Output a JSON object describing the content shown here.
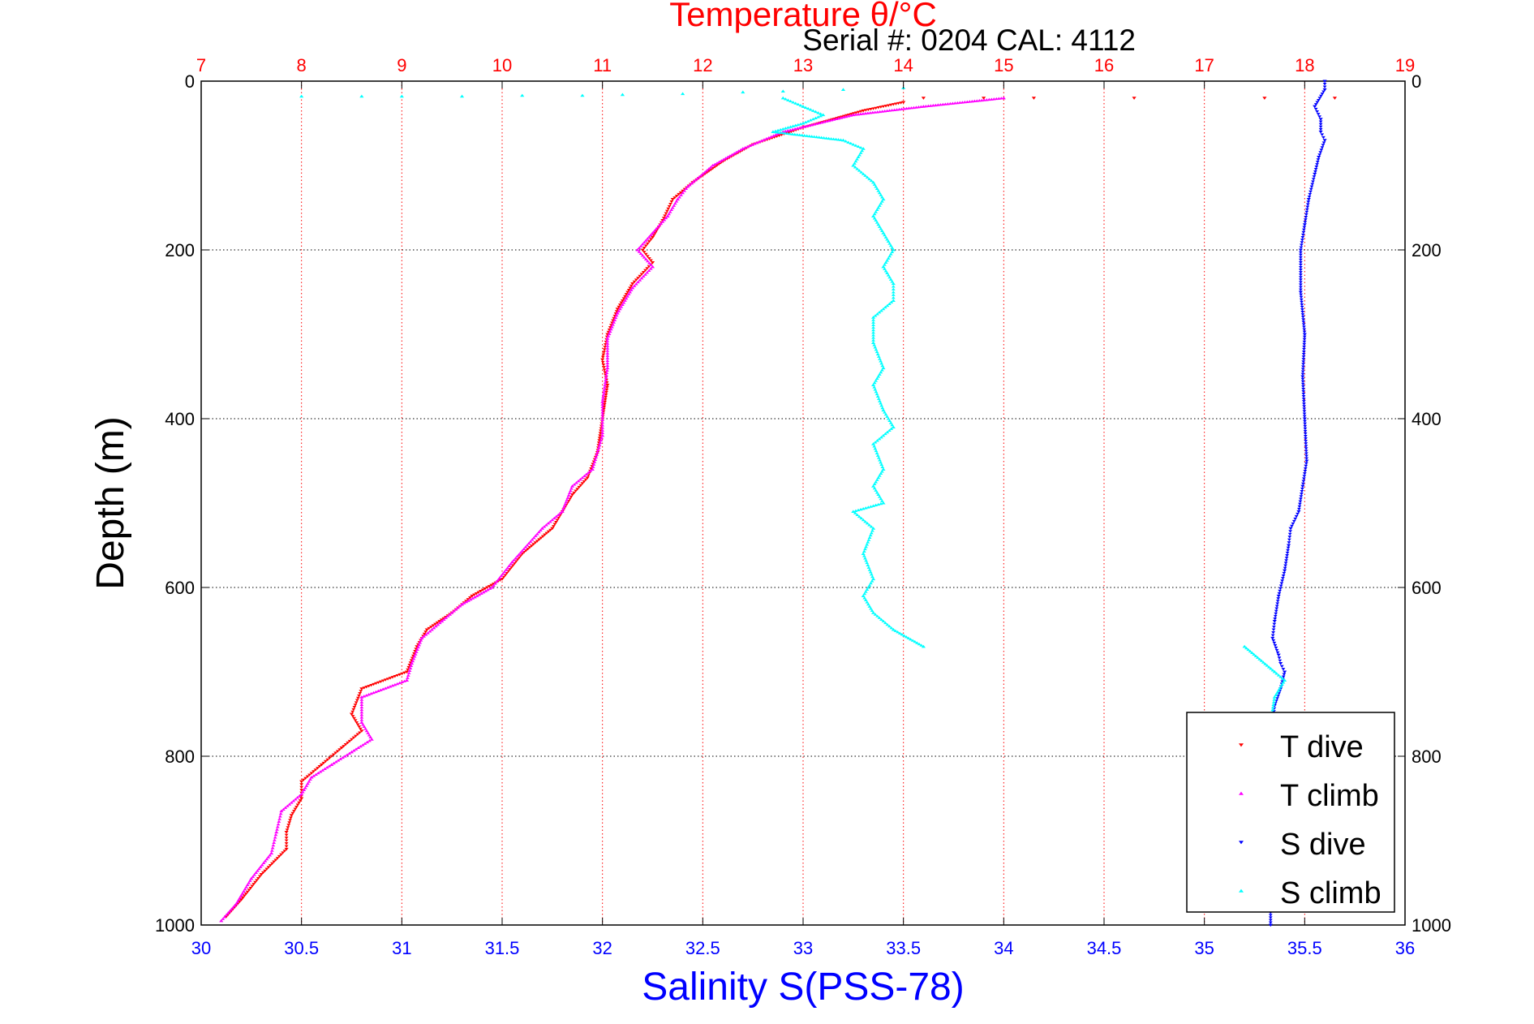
{
  "chart_data": {
    "type": "scatter",
    "title": "Temperature θ/°C",
    "subtitle": "Serial #: 0204  CAL: 4112",
    "xlabel": "Salinity S(PSS-78)",
    "x2label": "Temperature θ/°C",
    "ylabel": "Depth (m)",
    "xlim": [
      30,
      36
    ],
    "x2lim": [
      7,
      19
    ],
    "ylim": [
      1000,
      0
    ],
    "y_reversed": true,
    "grid": true,
    "legend_position": "bottom-right",
    "x_ticks": [
      "30",
      "30.5",
      "31",
      "31.5",
      "32",
      "32.5",
      "33",
      "33.5",
      "34",
      "34.5",
      "35",
      "35.5",
      "36"
    ],
    "x2_ticks": [
      "7",
      "8",
      "9",
      "10",
      "11",
      "12",
      "13",
      "14",
      "15",
      "16",
      "17",
      "18",
      "19"
    ],
    "y_ticks": [
      "0",
      "200",
      "400",
      "600",
      "800",
      "1000"
    ],
    "colors": {
      "temperature_axis": "#ff0000",
      "salinity_axis": "#0000ff",
      "ylabel": "#000000",
      "grid_temperature": "#ff0000",
      "grid_depth": "#000000"
    },
    "series": [
      {
        "name": "T dive",
        "axis": "temperature",
        "color": "#ff0000",
        "marker": "triangle-down",
        "points": [
          [
            14.2,
            20
          ],
          [
            14.8,
            20
          ],
          [
            15.3,
            20
          ],
          [
            16.3,
            20
          ],
          [
            17.6,
            20
          ],
          [
            18.3,
            20
          ],
          [
            14.0,
            25
          ],
          [
            13.6,
            35
          ],
          [
            13.0,
            55
          ],
          [
            12.5,
            75
          ],
          [
            12.2,
            95
          ],
          [
            11.9,
            120
          ],
          [
            11.7,
            140
          ],
          [
            11.6,
            165
          ],
          [
            11.5,
            185
          ],
          [
            11.4,
            200
          ],
          [
            11.5,
            215
          ],
          [
            11.3,
            240
          ],
          [
            11.15,
            270
          ],
          [
            11.05,
            300
          ],
          [
            11.0,
            330
          ],
          [
            11.05,
            360
          ],
          [
            11.0,
            400
          ],
          [
            10.95,
            440
          ],
          [
            10.85,
            470
          ],
          [
            10.7,
            490
          ],
          [
            10.5,
            530
          ],
          [
            10.2,
            560
          ],
          [
            10.0,
            590
          ],
          [
            9.7,
            610
          ],
          [
            9.5,
            630
          ],
          [
            9.25,
            650
          ],
          [
            9.15,
            670
          ],
          [
            9.05,
            700
          ],
          [
            8.6,
            720
          ],
          [
            8.5,
            750
          ],
          [
            8.6,
            770
          ],
          [
            8.4,
            790
          ],
          [
            8.2,
            810
          ],
          [
            8.0,
            830
          ],
          [
            8.0,
            850
          ],
          [
            7.9,
            870
          ],
          [
            7.85,
            890
          ],
          [
            7.85,
            910
          ],
          [
            7.6,
            940
          ],
          [
            7.4,
            970
          ],
          [
            7.25,
            990
          ]
        ]
      },
      {
        "name": "T climb",
        "axis": "temperature",
        "color": "#ff00ff",
        "marker": "triangle-up",
        "points": [
          [
            15.0,
            20
          ],
          [
            14.2,
            30
          ],
          [
            13.5,
            40
          ],
          [
            12.8,
            60
          ],
          [
            12.4,
            80
          ],
          [
            12.1,
            100
          ],
          [
            11.85,
            125
          ],
          [
            11.75,
            140
          ],
          [
            11.65,
            160
          ],
          [
            11.5,
            180
          ],
          [
            11.35,
            200
          ],
          [
            11.5,
            220
          ],
          [
            11.3,
            245
          ],
          [
            11.15,
            275
          ],
          [
            11.05,
            305
          ],
          [
            11.05,
            340
          ],
          [
            11.0,
            380
          ],
          [
            11.0,
            420
          ],
          [
            10.9,
            460
          ],
          [
            10.7,
            480
          ],
          [
            10.6,
            510
          ],
          [
            10.4,
            530
          ],
          [
            10.1,
            570
          ],
          [
            9.9,
            600
          ],
          [
            9.6,
            620
          ],
          [
            9.4,
            640
          ],
          [
            9.2,
            660
          ],
          [
            9.1,
            690
          ],
          [
            9.05,
            710
          ],
          [
            8.6,
            730
          ],
          [
            8.6,
            760
          ],
          [
            8.7,
            780
          ],
          [
            8.5,
            795
          ],
          [
            8.3,
            810
          ],
          [
            8.1,
            825
          ],
          [
            8.0,
            845
          ],
          [
            7.8,
            865
          ],
          [
            7.75,
            890
          ],
          [
            7.7,
            915
          ],
          [
            7.5,
            945
          ],
          [
            7.35,
            975
          ],
          [
            7.2,
            995
          ]
        ]
      },
      {
        "name": "S dive",
        "axis": "salinity",
        "color": "#0000ff",
        "marker": "triangle-down",
        "points": [
          [
            35.6,
            0
          ],
          [
            35.6,
            10
          ],
          [
            35.55,
            30
          ],
          [
            35.58,
            45
          ],
          [
            35.58,
            60
          ],
          [
            35.6,
            70
          ],
          [
            35.57,
            90
          ],
          [
            35.55,
            110
          ],
          [
            35.52,
            140
          ],
          [
            35.5,
            170
          ],
          [
            35.48,
            200
          ],
          [
            35.48,
            250
          ],
          [
            35.5,
            300
          ],
          [
            35.49,
            350
          ],
          [
            35.5,
            400
          ],
          [
            35.51,
            450
          ],
          [
            35.49,
            480
          ],
          [
            35.47,
            510
          ],
          [
            35.43,
            530
          ],
          [
            35.42,
            550
          ],
          [
            35.4,
            580
          ],
          [
            35.37,
            610
          ],
          [
            35.35,
            640
          ],
          [
            35.34,
            660
          ],
          [
            35.37,
            680
          ],
          [
            35.38,
            690
          ],
          [
            35.4,
            700
          ],
          [
            35.38,
            720
          ],
          [
            35.35,
            740
          ],
          [
            35.34,
            760
          ],
          [
            35.34,
            800
          ],
          [
            35.34,
            850
          ],
          [
            35.33,
            900
          ],
          [
            35.33,
            950
          ],
          [
            35.33,
            1000
          ]
        ]
      },
      {
        "name": "S climb",
        "axis": "salinity",
        "color": "#00ffff",
        "marker": "triangle-up",
        "points": [
          [
            30.5,
            18
          ],
          [
            30.8,
            18
          ],
          [
            31.0,
            18
          ],
          [
            31.3,
            18
          ],
          [
            31.6,
            17
          ],
          [
            31.9,
            17
          ],
          [
            32.1,
            16
          ],
          [
            32.4,
            15
          ],
          [
            32.7,
            13
          ],
          [
            32.9,
            12
          ],
          [
            33.2,
            10
          ],
          [
            33.5,
            8
          ],
          [
            32.9,
            20
          ],
          [
            33.0,
            30
          ],
          [
            33.1,
            40
          ],
          [
            33.0,
            50
          ],
          [
            32.85,
            60
          ],
          [
            33.2,
            70
          ],
          [
            33.3,
            80
          ],
          [
            33.25,
            100
          ],
          [
            33.35,
            120
          ],
          [
            33.4,
            140
          ],
          [
            33.35,
            160
          ],
          [
            33.4,
            180
          ],
          [
            33.45,
            200
          ],
          [
            33.4,
            220
          ],
          [
            33.45,
            240
          ],
          [
            33.45,
            260
          ],
          [
            33.35,
            280
          ],
          [
            33.35,
            310
          ],
          [
            33.4,
            340
          ],
          [
            33.35,
            360
          ],
          [
            33.4,
            390
          ],
          [
            33.45,
            410
          ],
          [
            33.35,
            430
          ],
          [
            33.4,
            460
          ],
          [
            33.35,
            480
          ],
          [
            33.4,
            500
          ],
          [
            33.25,
            510
          ],
          [
            33.35,
            530
          ],
          [
            33.3,
            560
          ],
          [
            33.35,
            590
          ],
          [
            33.3,
            610
          ],
          [
            33.35,
            630
          ],
          [
            33.45,
            650
          ],
          [
            33.6,
            670
          ],
          [
            35.2,
            670
          ],
          [
            35.35,
            700
          ],
          [
            35.4,
            710
          ],
          [
            35.35,
            730
          ],
          [
            35.33,
            760
          ],
          [
            35.33,
            800
          ]
        ]
      }
    ]
  }
}
